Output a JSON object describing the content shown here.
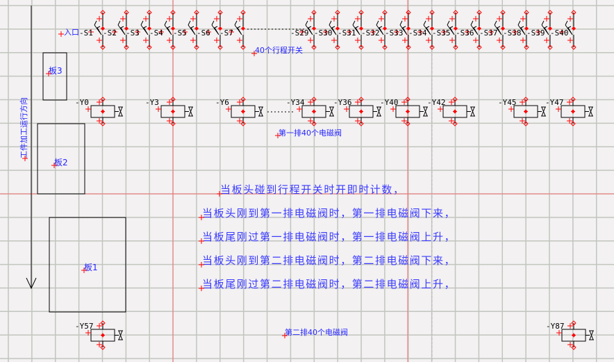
{
  "entrance_label": "入口",
  "switch_group_label": "40个行程开关",
  "switches": [
    "-S1",
    "-S2",
    "-S3",
    "-S4",
    "-S5",
    "-S6",
    "-S7",
    "-S29",
    "-S30",
    "-S31",
    "-S32",
    "-S33",
    "-S34",
    "-S35",
    "-S36",
    "-S37",
    "-S38",
    "-S39",
    "-S40"
  ],
  "row1_label": "第一排40个电磁阀",
  "row1_valves": [
    "-Y0",
    "-Y3",
    "-Y6",
    "-Y34",
    "-Y36",
    "-Y40",
    "-Y42",
    "-Y45",
    "-Y47"
  ],
  "row2_label": "第二排40个电磁阀",
  "row2_valves": [
    "-Y57",
    "-Y87"
  ],
  "direction_label": "工件加工运行方向",
  "boards": [
    "板3",
    "板2",
    "板1"
  ],
  "notes": [
    "当板头碰到行程开关时开即时计数，",
    "当板头刚到第一排电磁阀时，第一排电磁阀下来，",
    "当板尾刚过第一排电磁阀时，第一排电磁阀上升，",
    "当板头刚到第二排电磁阀时，第二排电磁阀下来，",
    "当板尾刚过第二排电磁阀时，第二排电磁阀上升，"
  ],
  "colors": {
    "background": "#f3f1f2",
    "grid": "#c2c5be",
    "axis": "#f07070",
    "text": "#2424ff",
    "marker": "#ff0000",
    "line": "#000000"
  }
}
